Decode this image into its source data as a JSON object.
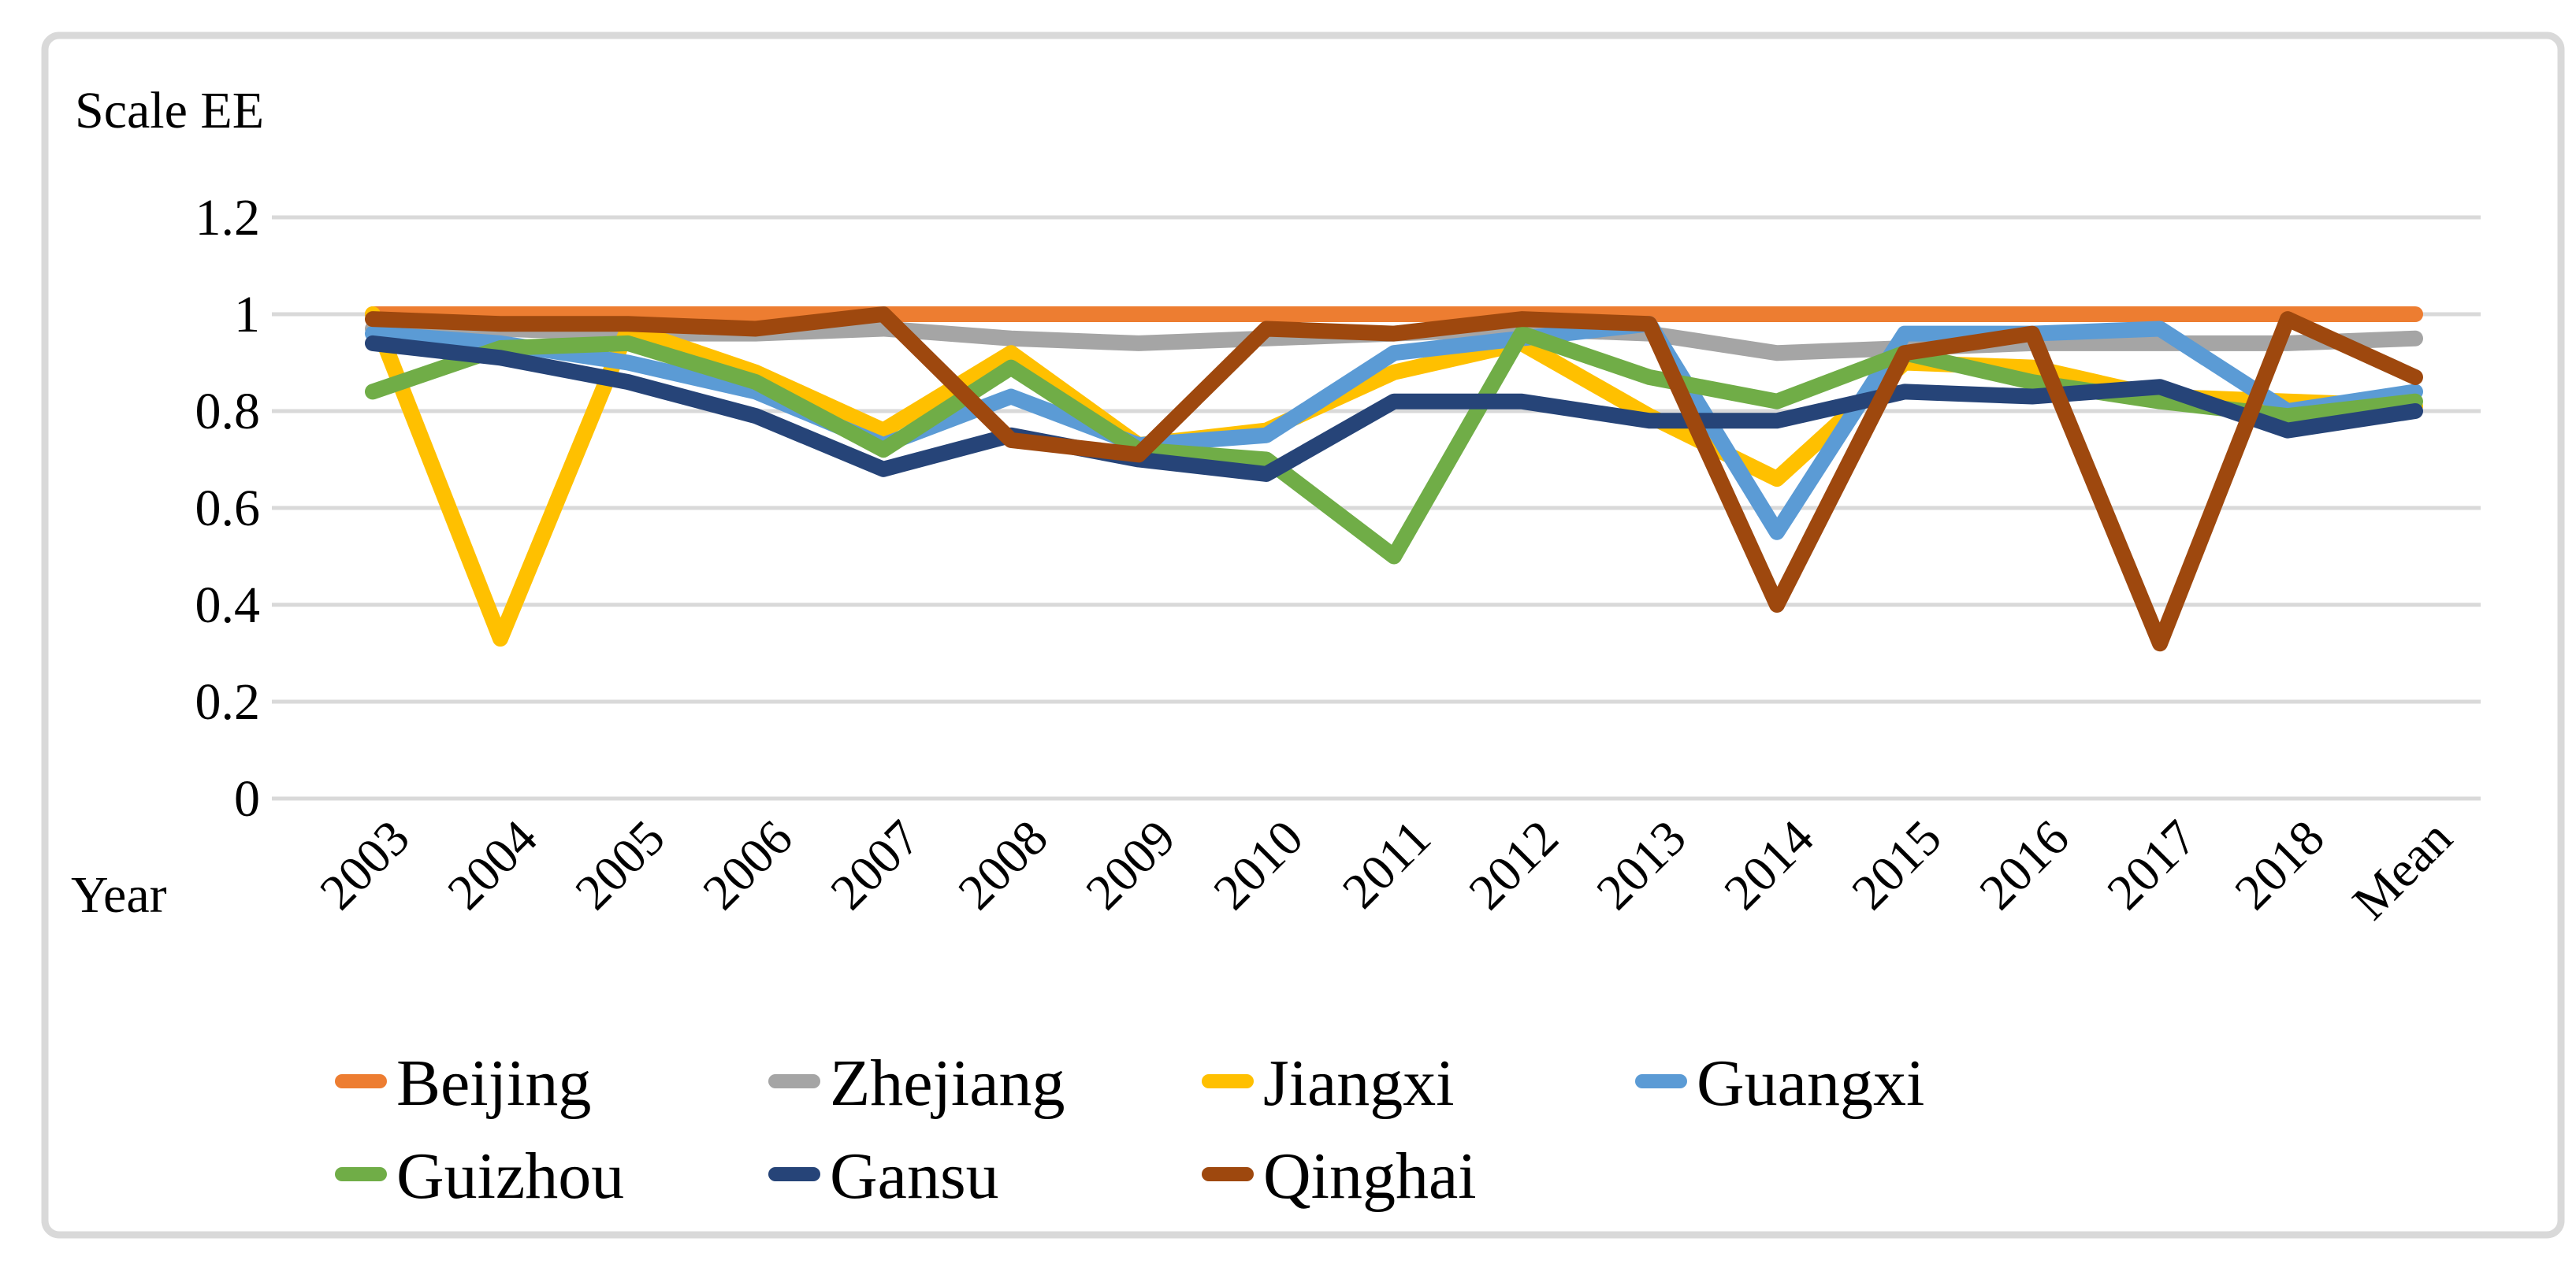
{
  "title": "Scale EE",
  "axis": {
    "x_label": "Year"
  },
  "frame_color": "#D9D9D9",
  "grid_color": "#D9D9D9",
  "background": "#FFFFFF",
  "chart_data": {
    "type": "line",
    "title": "Scale EE",
    "xlabel": "Year",
    "ylabel": "Scale EE",
    "ylim": [
      0,
      1.2
    ],
    "grid": true,
    "legend_position": "bottom",
    "y_ticks": [
      {
        "label": "1.2",
        "value": 1.2
      },
      {
        "label": "1",
        "value": 1.0
      },
      {
        "label": "0.8",
        "value": 0.8
      },
      {
        "label": "0.6",
        "value": 0.6
      },
      {
        "label": "0.4",
        "value": 0.4
      },
      {
        "label": "0.2",
        "value": 0.2
      },
      {
        "label": "0",
        "value": 0.0
      }
    ],
    "categories": [
      "2003",
      "2004",
      "2005",
      "2006",
      "2007",
      "2008",
      "2009",
      "2010",
      "2011",
      "2012",
      "2013",
      "2014",
      "2015",
      "2016",
      "2017",
      "2018",
      "Mean"
    ],
    "series": [
      {
        "name": "Beijing",
        "color": "#ED7D31",
        "values": [
          1.0,
          1.0,
          1.0,
          1.0,
          1.0,
          1.0,
          1.0,
          1.0,
          1.0,
          1.0,
          1.0,
          1.0,
          1.0,
          1.0,
          1.0,
          1.0,
          1.0
        ]
      },
      {
        "name": "Zhejiang",
        "color": "#A5A5A5",
        "values": [
          0.97,
          0.97,
          0.96,
          0.96,
          0.97,
          0.95,
          0.94,
          0.95,
          0.96,
          0.97,
          0.96,
          0.92,
          0.93,
          0.94,
          0.94,
          0.94,
          0.95
        ]
      },
      {
        "name": "Jiangxi",
        "color": "#FFC000",
        "values": [
          1.0,
          0.33,
          0.97,
          0.88,
          0.76,
          0.92,
          0.73,
          0.76,
          0.88,
          0.94,
          0.79,
          0.66,
          0.9,
          0.89,
          0.83,
          0.82,
          0.81
        ]
      },
      {
        "name": "Guangxi",
        "color": "#5B9BD5",
        "values": [
          0.96,
          0.94,
          0.9,
          0.84,
          0.73,
          0.83,
          0.73,
          0.75,
          0.92,
          0.95,
          0.98,
          0.55,
          0.96,
          0.96,
          0.97,
          0.8,
          0.84
        ]
      },
      {
        "name": "Guizhou",
        "color": "#70AD47",
        "values": [
          0.84,
          0.93,
          0.94,
          0.86,
          0.72,
          0.89,
          0.72,
          0.7,
          0.5,
          0.96,
          0.87,
          0.82,
          0.92,
          0.86,
          0.82,
          0.79,
          0.82
        ]
      },
      {
        "name": "Gansu",
        "color": "#264478",
        "values": [
          0.94,
          0.91,
          0.86,
          0.79,
          0.68,
          0.75,
          0.7,
          0.67,
          0.82,
          0.82,
          0.78,
          0.78,
          0.84,
          0.83,
          0.85,
          0.76,
          0.8
        ]
      },
      {
        "name": "Qinghai",
        "color": "#9E480E",
        "values": [
          0.99,
          0.98,
          0.98,
          0.97,
          1.0,
          0.74,
          0.71,
          0.97,
          0.96,
          0.99,
          0.98,
          0.4,
          0.92,
          0.96,
          0.32,
          0.99,
          0.87
        ]
      }
    ]
  }
}
